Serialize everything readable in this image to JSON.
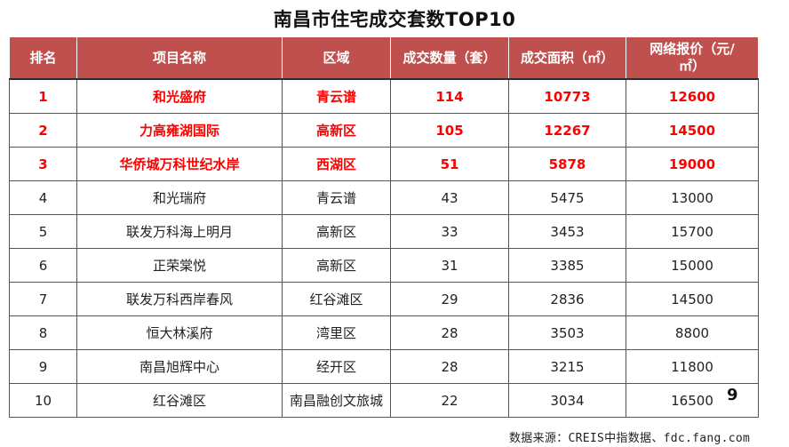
{
  "title": "南昌市住宅成交套数TOP10",
  "columns": [
    "排名",
    "项目名称",
    "区域",
    "成交数量（套）",
    "成交面积（㎡）",
    "网络报价（元/㎡）"
  ],
  "page_number": "9",
  "source": "数据来源：CREIS中指数据、fdc.fang.com",
  "colors": {
    "header_bg": "#c0504d",
    "highlight_text": "#ff0000"
  },
  "chart_data": {
    "type": "table",
    "title": "南昌市住宅成交套数TOP10",
    "columns": [
      "排名",
      "项目名称",
      "区域",
      "成交数量（套）",
      "成交面积（㎡）",
      "网络报价（元/㎡）"
    ],
    "highlighted_ranks": [
      1,
      2,
      3
    ],
    "rows": [
      {
        "rank": "1",
        "project": "和光盛府",
        "district": "青云谱",
        "units": "114",
        "area": "10773",
        "price": "12600"
      },
      {
        "rank": "2",
        "project": "力高雍湖国际",
        "district": "高新区",
        "units": "105",
        "area": "12267",
        "price": "14500"
      },
      {
        "rank": "3",
        "project": "华侨城万科世纪水岸",
        "district": "西湖区",
        "units": "51",
        "area": "5878",
        "price": "19000"
      },
      {
        "rank": "4",
        "project": "和光瑞府",
        "district": "青云谱",
        "units": "43",
        "area": "5475",
        "price": "13000"
      },
      {
        "rank": "5",
        "project": "联发万科海上明月",
        "district": "高新区",
        "units": "33",
        "area": "3453",
        "price": "15700"
      },
      {
        "rank": "6",
        "project": "正荣棠悦",
        "district": "高新区",
        "units": "31",
        "area": "3385",
        "price": "15000"
      },
      {
        "rank": "7",
        "project": "联发万科西岸春风",
        "district": "红谷滩区",
        "units": "29",
        "area": "2836",
        "price": "14500"
      },
      {
        "rank": "8",
        "project": "恒大林溪府",
        "district": "湾里区",
        "units": "28",
        "area": "3503",
        "price": "8800"
      },
      {
        "rank": "9",
        "project": "南昌旭辉中心",
        "district": "经开区",
        "units": "28",
        "area": "3215",
        "price": "11800"
      },
      {
        "rank": "10",
        "project": "红谷滩区",
        "district": "南昌融创文旅城",
        "units": "22",
        "area": "3034",
        "price": "16500"
      }
    ]
  }
}
